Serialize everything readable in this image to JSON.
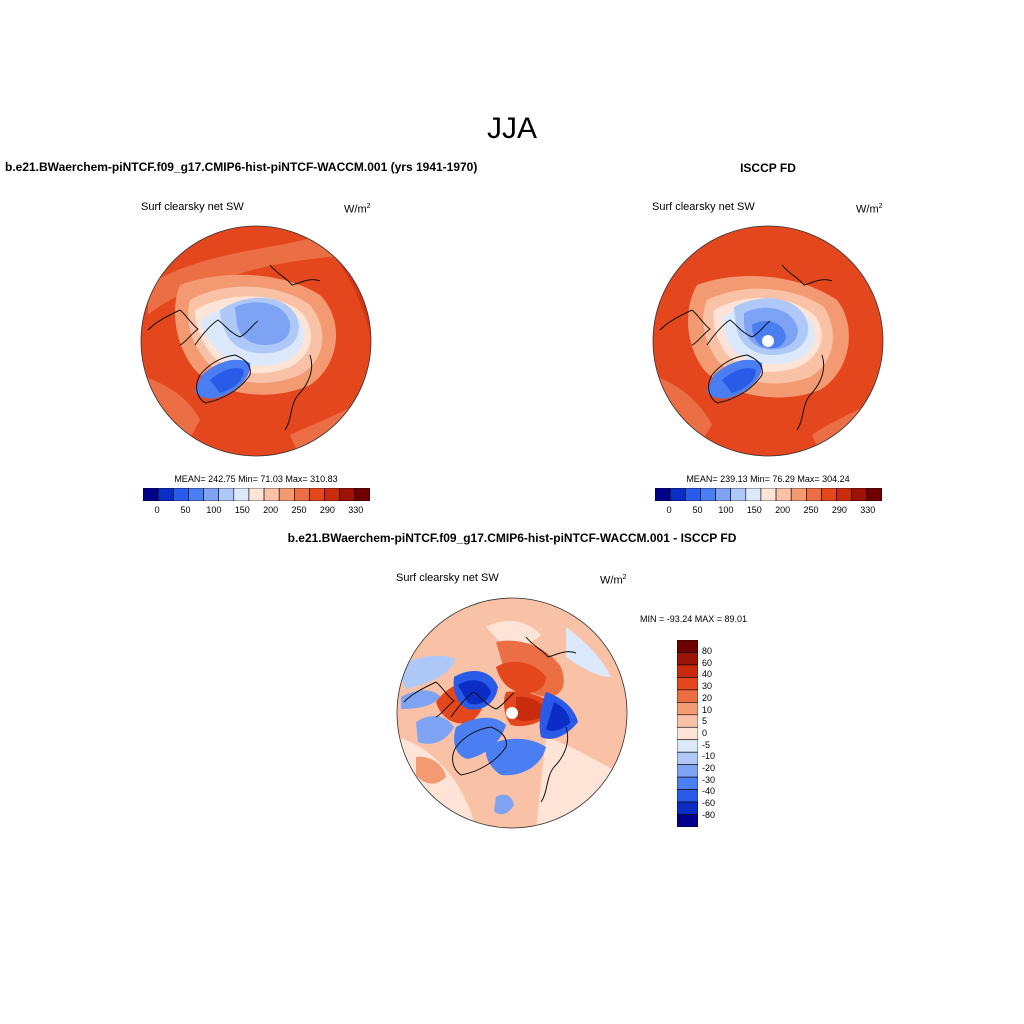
{
  "title": "JJA",
  "panels": [
    {
      "id": "model",
      "header": "b.e21.BWaerchem-piNTCF.f09_g17.CMIP6-hist-piNTCF-WACCM.001 (yrs 1941-1970)",
      "variable": "Surf clearsky net SW",
      "units_base": "W/m",
      "units_exp": "2",
      "stats": "MEAN= 242.75  Min=  71.03  Max= 310.83",
      "colorbar_labels": [
        "0",
        "50",
        "100",
        "150",
        "200",
        "250",
        "290",
        "330"
      ]
    },
    {
      "id": "obs",
      "header": "ISCCP FD",
      "variable": "Surf clearsky net SW",
      "units_base": "W/m",
      "units_exp": "2",
      "stats": "MEAN= 239.13  Min=  76.29  Max= 304.24",
      "colorbar_labels": [
        "0",
        "50",
        "100",
        "150",
        "200",
        "250",
        "290",
        "330"
      ]
    },
    {
      "id": "diff",
      "header": "b.e21.BWaerchem-piNTCF.f09_g17.CMIP6-hist-piNTCF-WACCM.001 - ISCCP FD",
      "variable": "Surf clearsky net SW",
      "units_base": "W/m",
      "units_exp": "2",
      "stats": "MIN = -93.24 MAX =  89.01",
      "colorbar_labels": [
        "80",
        "60",
        "40",
        "30",
        "20",
        "10",
        "5",
        "0",
        "-5",
        "-10",
        "-20",
        "-30",
        "-40",
        "-60",
        "-80"
      ]
    }
  ],
  "colors": {
    "abs_scale": [
      "#00008b",
      "#0c2cc6",
      "#2a5be8",
      "#4a7ef2",
      "#7ea3f5",
      "#aec8f7",
      "#dce8fb",
      "#fde4d6",
      "#f9c2a6",
      "#f39a72",
      "#ec6e44",
      "#e4471e",
      "#c92b0e",
      "#9c1308",
      "#6e0000"
    ],
    "diff_scale": [
      "#00008b",
      "#0c2cc6",
      "#2a5be8",
      "#4a7ef2",
      "#7ea3f5",
      "#aec8f7",
      "#dce8fb",
      "#fde4d6",
      "#f9c2a6",
      "#f39a72",
      "#ec6e44",
      "#e4471e",
      "#c92b0e",
      "#9c1308",
      "#6e0000"
    ],
    "coast": "#111111"
  }
}
